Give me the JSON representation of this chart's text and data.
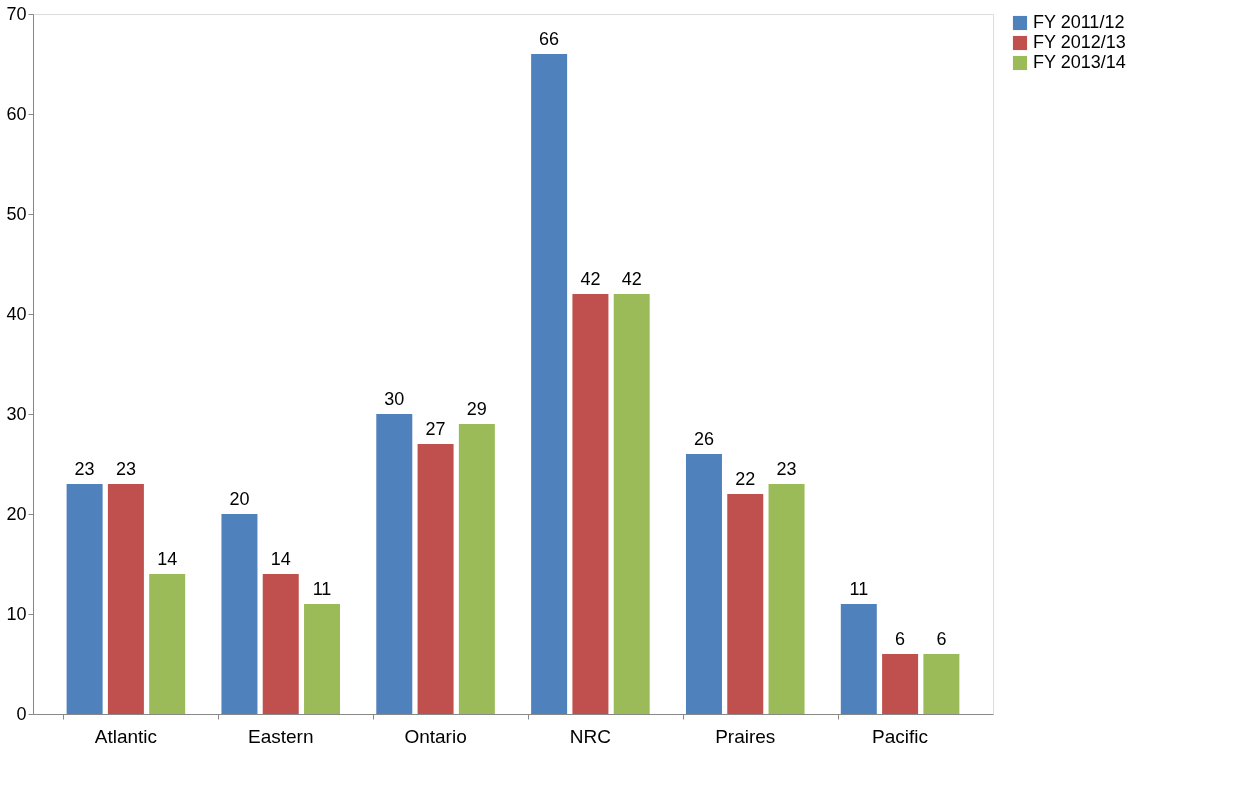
{
  "chart_data": {
    "type": "bar",
    "categories": [
      "Atlantic",
      "Eastern",
      "Ontario",
      "NRC",
      "Praires",
      "Pacific"
    ],
    "series": [
      {
        "name": "FY 2011/12",
        "color": "#4f81bd",
        "values": [
          23,
          20,
          30,
          66,
          26,
          11
        ]
      },
      {
        "name": "FY 2012/13",
        "color": "#c0504d",
        "values": [
          23,
          14,
          27,
          42,
          22,
          6
        ]
      },
      {
        "name": "FY 2013/14",
        "color": "#9bbb59",
        "values": [
          14,
          11,
          29,
          42,
          23,
          6
        ]
      }
    ],
    "ylim": [
      0,
      70
    ],
    "yticks": [
      0,
      10,
      20,
      30,
      40,
      50,
      60,
      70
    ],
    "grid": false,
    "legend": "right",
    "data_labels": true
  }
}
